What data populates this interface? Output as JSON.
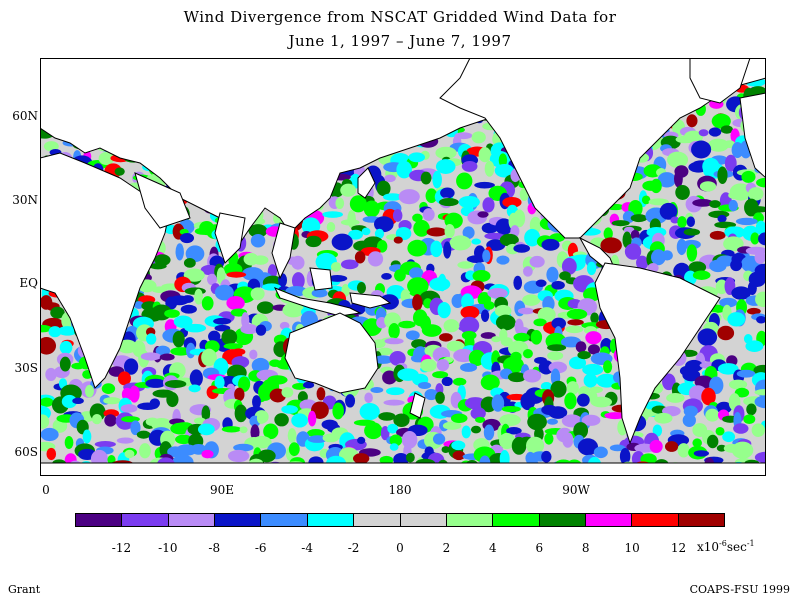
{
  "title_line1": "Wind Divergence from NSCAT Gridded Wind Data for",
  "title_line2": "June 1, 1997 – June 7, 1997",
  "map": {
    "projection": "equirectangular",
    "lon_range": [
      0,
      360
    ],
    "lat_range": [
      -70,
      70
    ],
    "lat_labels": [
      "60N",
      "30N",
      "EQ",
      "30S",
      "60S"
    ],
    "lon_labels": [
      "0",
      "90E",
      "180",
      "90W"
    ],
    "ocean_field": "wind divergence",
    "land_color": "#ffffff",
    "coastline_color": "#000000"
  },
  "colorbar": {
    "colors": [
      "#4b0082",
      "#7b3cf0",
      "#b98bf5",
      "#0a14c8",
      "#3c8cff",
      "#00ffff",
      "#d3d3d3",
      "#d3d3d3",
      "#96ff8c",
      "#00ff00",
      "#008200",
      "#ff00ff",
      "#ff0000",
      "#a00000"
    ],
    "tick_labels": [
      "-12",
      "-10",
      "-8",
      "-6",
      "-4",
      "-2",
      "0",
      "2",
      "4",
      "6",
      "8",
      "10",
      "12"
    ],
    "units_prefix": "x10",
    "units_exp": "-6",
    "units_suffix": "sec",
    "units_suffix_exp": "-1"
  },
  "credit_left": "Grant",
  "credit_right": "COAPS-FSU 1999"
}
